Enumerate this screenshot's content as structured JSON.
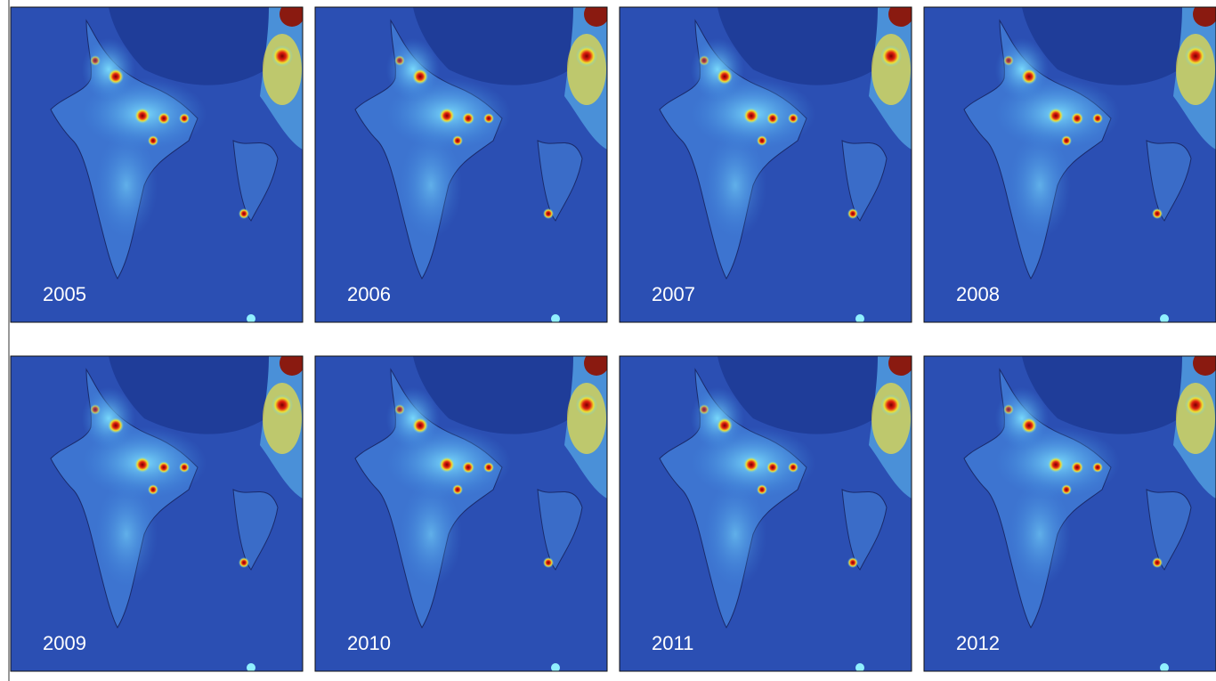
{
  "panels": [
    {
      "label": "2005"
    },
    {
      "label": "2006"
    },
    {
      "label": "2007"
    },
    {
      "label": "2008"
    },
    {
      "label": "2009"
    },
    {
      "label": "2010"
    },
    {
      "label": "2011"
    },
    {
      "label": "2012"
    }
  ]
}
